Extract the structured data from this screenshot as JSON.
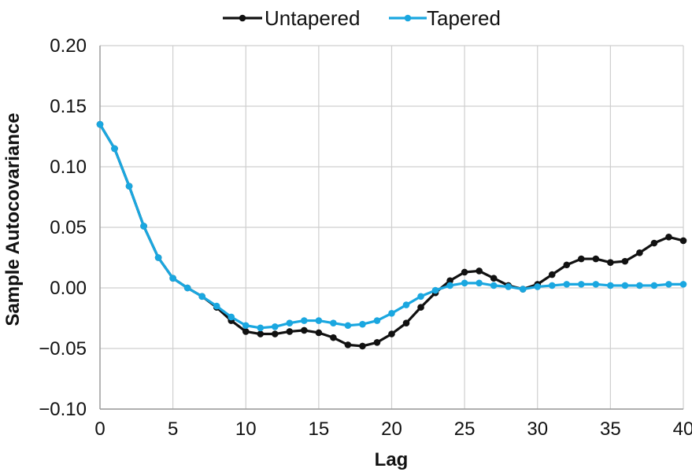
{
  "chart_data": {
    "type": "line",
    "xlabel": "Lag",
    "ylabel": "Sample Autocovariance",
    "xlim": [
      0,
      40
    ],
    "ylim": [
      -0.1,
      0.2
    ],
    "x_ticks": [
      0,
      5,
      10,
      15,
      20,
      25,
      30,
      35,
      40
    ],
    "x_tick_labels": [
      "0",
      "5",
      "10",
      "15",
      "20",
      "25",
      "30",
      "35",
      "40"
    ],
    "y_ticks": [
      -0.1,
      -0.05,
      0.0,
      0.05,
      0.1,
      0.15,
      0.2
    ],
    "y_tick_labels": [
      "−0.10",
      "−0.05",
      "0.00",
      "0.05",
      "0.10",
      "0.15",
      "0.20"
    ],
    "grid": true,
    "legend_position": "top",
    "x": [
      0,
      1,
      2,
      3,
      4,
      5,
      6,
      7,
      8,
      9,
      10,
      11,
      12,
      13,
      14,
      15,
      16,
      17,
      18,
      19,
      20,
      21,
      22,
      23,
      24,
      25,
      26,
      27,
      28,
      29,
      30,
      31,
      32,
      33,
      34,
      35,
      36,
      37,
      38,
      39,
      40
    ],
    "series": [
      {
        "name": "Untapered",
        "color": "#111111",
        "values": [
          0.135,
          0.115,
          0.084,
          0.051,
          0.025,
          0.008,
          0.0,
          -0.007,
          -0.016,
          -0.027,
          -0.036,
          -0.038,
          -0.038,
          -0.036,
          -0.035,
          -0.037,
          -0.041,
          -0.047,
          -0.048,
          -0.045,
          -0.038,
          -0.029,
          -0.016,
          -0.004,
          0.006,
          0.013,
          0.014,
          0.008,
          0.002,
          -0.001,
          0.003,
          0.011,
          0.019,
          0.024,
          0.024,
          0.021,
          0.022,
          0.029,
          0.037,
          0.042,
          0.039
        ]
      },
      {
        "name": "Tapered",
        "color": "#1aa7e0",
        "values": [
          0.135,
          0.115,
          0.084,
          0.051,
          0.025,
          0.008,
          0.0,
          -0.007,
          -0.015,
          -0.024,
          -0.031,
          -0.033,
          -0.032,
          -0.029,
          -0.027,
          -0.027,
          -0.029,
          -0.031,
          -0.03,
          -0.027,
          -0.021,
          -0.014,
          -0.007,
          -0.002,
          0.002,
          0.004,
          0.004,
          0.002,
          0.001,
          -0.001,
          0.001,
          0.002,
          0.003,
          0.003,
          0.003,
          0.002,
          0.002,
          0.002,
          0.002,
          0.003,
          0.003
        ]
      }
    ]
  }
}
